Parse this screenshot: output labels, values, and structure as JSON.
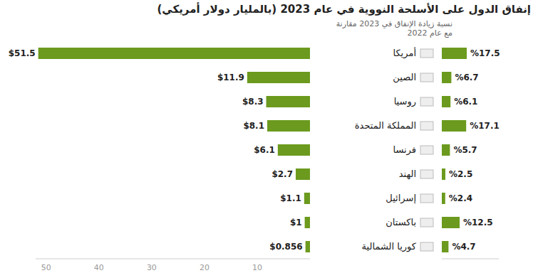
{
  "chart_data": [
    {
      "type": "bar",
      "title": "إنفاق الدول على الأسلحة النووية في عام 2023 (بالمليار دولار أمريكي)",
      "orientation": "horizontal",
      "categories": [
        "أمريكا",
        "الصين",
        "روسيا",
        "المملكة المتحدة",
        "فرنسا",
        "الهند",
        "إسرائيل",
        "باكستان",
        "كوريا الشمالية"
      ],
      "values": [
        51.5,
        11.9,
        8.3,
        8.1,
        6.1,
        2.7,
        1.1,
        1,
        0.856
      ],
      "value_labels": [
        "$51.5",
        "$11.9",
        "$8.3",
        "$8.1",
        "$6.1",
        "$2.7",
        "$1.1",
        "$1",
        "$0.856"
      ],
      "color": "#6b9a1e",
      "xlim": [
        0,
        52
      ],
      "xticks": [
        10,
        20,
        30,
        40,
        50
      ],
      "data_labels": true
    },
    {
      "type": "bar",
      "subtitle": "نسبة زيادة الإنفاق في 2023 مقارنة مع عام 2022",
      "orientation": "horizontal",
      "categories": [
        "أمريكا",
        "الصين",
        "روسيا",
        "المملكة المتحدة",
        "فرنسا",
        "الهند",
        "إسرائيل",
        "باكستان",
        "كوريا الشمالية"
      ],
      "values": [
        17.5,
        6.7,
        6.1,
        17.1,
        5.7,
        2.5,
        2.4,
        12.5,
        4.7
      ],
      "value_labels": [
        "%17.5",
        "%6.7",
        "%6.1",
        "%17.1",
        "%5.7",
        "%2.5",
        "%2.4",
        "%12.5",
        "%4.7"
      ],
      "color": "#6b9a1e",
      "xlim": [
        0,
        40
      ],
      "tick_labels": false,
      "data_labels": true
    }
  ]
}
